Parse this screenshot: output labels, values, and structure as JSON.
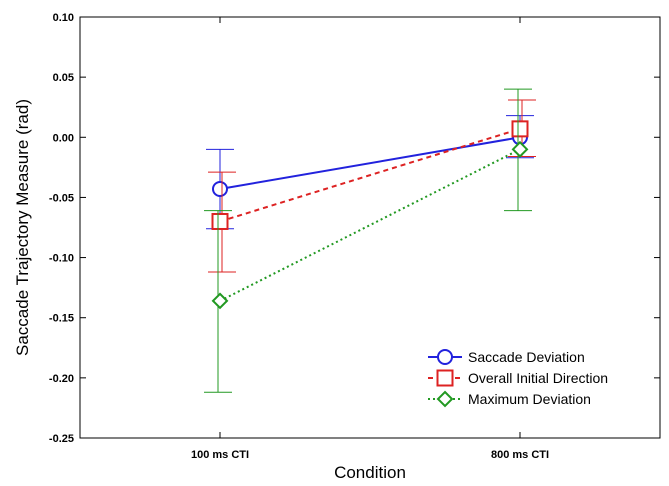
{
  "chart_data": {
    "type": "line",
    "title": "",
    "xlabel": "Condition",
    "ylabel": "Saccade Trajectory Measure (rad)",
    "categories": [
      "100 ms CTI",
      "800 ms CTI"
    ],
    "ylim": [
      -0.25,
      0.1
    ],
    "yticks": [
      0.1,
      0.05,
      0.0,
      -0.05,
      -0.1,
      -0.15,
      -0.2,
      -0.25
    ],
    "ytick_labels": [
      "0.10",
      "0.05",
      "0.00",
      "-0.05",
      "-0.10",
      "-0.15",
      "-0.20",
      "-0.25"
    ],
    "grid": false,
    "legend_position": "bottom-right",
    "series": [
      {
        "name": "Saccade Deviation",
        "marker": "circle",
        "line_style": "solid",
        "color": "#2222dd",
        "values": [
          -0.043,
          0.0
        ],
        "error_low": [
          -0.076,
          -0.017
        ],
        "error_high": [
          -0.01,
          0.018
        ]
      },
      {
        "name": "Overall Initial Direction",
        "marker": "square",
        "line_style": "dashed",
        "color": "#dd2222",
        "values": [
          -0.07,
          0.007
        ],
        "error_low": [
          -0.112,
          -0.016
        ],
        "error_high": [
          -0.029,
          0.031
        ]
      },
      {
        "name": "Maximum Deviation",
        "marker": "diamond",
        "line_style": "dotted",
        "color": "#229922",
        "values": [
          -0.136,
          -0.01
        ],
        "error_low": [
          -0.212,
          -0.061
        ],
        "error_high": [
          -0.061,
          0.04
        ]
      }
    ]
  }
}
